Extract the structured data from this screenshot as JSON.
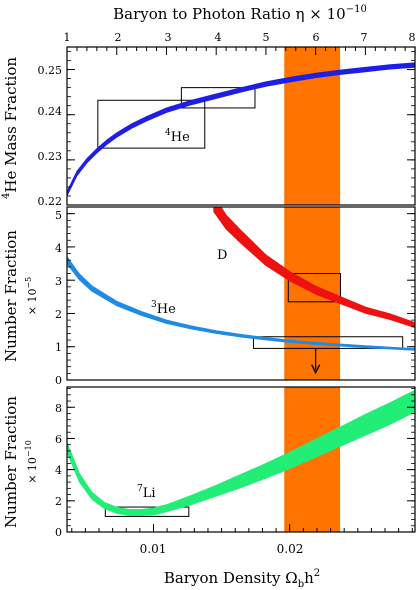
{
  "chart_data": {
    "type": "line",
    "top_axis": {
      "label": "Baryon to Photon Ratio η × 10",
      "label_exponent": "−10",
      "ticks": [
        "1",
        "2",
        "3",
        "4",
        "5",
        "6",
        "7",
        "8"
      ],
      "range": [
        1,
        8
      ]
    },
    "bottom_axis": {
      "label": "Baryon Density Ω",
      "label_sub": "b",
      "label_tail": "h",
      "label_sup": "2",
      "ticks": [
        "0.01",
        "0.02"
      ],
      "range": [
        0.00365,
        0.0292
      ]
    },
    "band": {
      "omega_range": [
        0.0196,
        0.0237
      ],
      "color": "#ff7300"
    },
    "panels": [
      {
        "id": "he4",
        "ylabel_sup": "4",
        "ylabel": "He Mass Fraction",
        "ylim": [
          0.22,
          0.255
        ],
        "yticks": [
          "0.22",
          "0.23",
          "0.24",
          "0.25"
        ],
        "series": [
          {
            "label_sup": "4",
            "label": "He",
            "color": "#1e1ee6",
            "eta": [
              1.0,
              1.2,
              1.4,
              1.6,
              1.8,
              2.0,
              2.3,
              2.6,
              3.0,
              3.5,
              4.0,
              4.5,
              5.0,
              5.5,
              6.0,
              6.5,
              7.0,
              7.5,
              8.0
            ],
            "y": [
              0.2225,
              0.227,
              0.2298,
              0.232,
              0.2339,
              0.2355,
              0.2375,
              0.2391,
              0.241,
              0.2427,
              0.2441,
              0.2455,
              0.2468,
              0.2478,
              0.2487,
              0.2494,
              0.25,
              0.2506,
              0.251
            ],
            "halfwidth": 0.0005
          }
        ],
        "boxes": [
          {
            "eta": [
              1.62,
              3.77
            ],
            "y": [
              0.2326,
              0.2432
            ]
          },
          {
            "eta": [
              3.3,
              4.78
            ],
            "y": [
              0.2415,
              0.246
            ]
          }
        ]
      },
      {
        "id": "dhe3",
        "ylabel": "Number Fraction",
        "ylabel2_pre": "× 10",
        "ylabel2_sup": "−5",
        "ylim": [
          0,
          5.2
        ],
        "yticks": [
          "0",
          "1",
          "2",
          "3",
          "4",
          "5"
        ],
        "series": [
          {
            "label": "D",
            "color": "#ee1111",
            "eta": [
              3.95,
              4.2,
              4.5,
              5.0,
              5.5,
              6.0,
              6.5,
              7.0,
              7.5,
              8.0
            ],
            "y": [
              5.3,
              4.75,
              4.3,
              3.6,
              3.1,
              2.7,
              2.4,
              2.1,
              1.9,
              1.65
            ],
            "halfwidth_frac": 0.045
          },
          {
            "label_sup": "3",
            "label": "He",
            "color": "#1e8be6",
            "eta": [
              1.0,
              1.25,
              1.5,
              2.0,
              2.5,
              3.0,
              3.5,
              4.0,
              4.5,
              5.0,
              5.5,
              6.0,
              6.5,
              7.0,
              7.5,
              8.0
            ],
            "y": [
              3.6,
              3.1,
              2.75,
              2.3,
              2.0,
              1.75,
              1.58,
              1.44,
              1.33,
              1.24,
              1.16,
              1.1,
              1.05,
              1.0,
              0.96,
              0.92
            ],
            "halfwidth_frac": 0.03
          }
        ],
        "boxes": [
          {
            "eta": [
              5.45,
              6.5
            ],
            "y": [
              2.35,
              3.2
            ]
          },
          {
            "eta": [
              4.75,
              7.75
            ],
            "y": [
              0.95,
              1.3
            ]
          }
        ],
        "arrow": {
          "eta": 6.0,
          "y_from": 0.95,
          "y_to": 0.25
        }
      },
      {
        "id": "li7",
        "ylabel": "Number Fraction",
        "ylabel2_pre": "× 10",
        "ylabel2_sup": "−10",
        "ylim": [
          0,
          9.3
        ],
        "yticks": [
          "0",
          "2",
          "4",
          "6",
          "8"
        ],
        "series": [
          {
            "label_sup": "7",
            "label": "Li",
            "color": "#22ee77",
            "eta": [
              1.0,
              1.25,
              1.5,
              1.75,
              2.0,
              2.25,
              2.5,
              2.75,
              3.0,
              3.5,
              4.0,
              4.5,
              5.0,
              5.5,
              6.0,
              6.5,
              7.0,
              7.5,
              8.0
            ],
            "y_low": [
              5.1,
              3.2,
              2.1,
              1.5,
              1.2,
              1.05,
              1.05,
              1.1,
              1.3,
              1.75,
              2.3,
              2.85,
              3.45,
              4.1,
              4.8,
              5.5,
              6.2,
              6.9,
              7.7
            ],
            "y_high": [
              5.75,
              3.75,
              2.55,
              1.9,
              1.6,
              1.45,
              1.45,
              1.55,
              1.75,
              2.35,
              3.0,
              3.7,
              4.4,
              5.15,
              5.95,
              6.75,
              7.55,
              8.3,
              9.1
            ]
          }
        ],
        "boxes": [
          {
            "eta": [
              1.77,
              3.45
            ],
            "y": [
              1.0,
              1.6
            ]
          }
        ]
      }
    ]
  }
}
